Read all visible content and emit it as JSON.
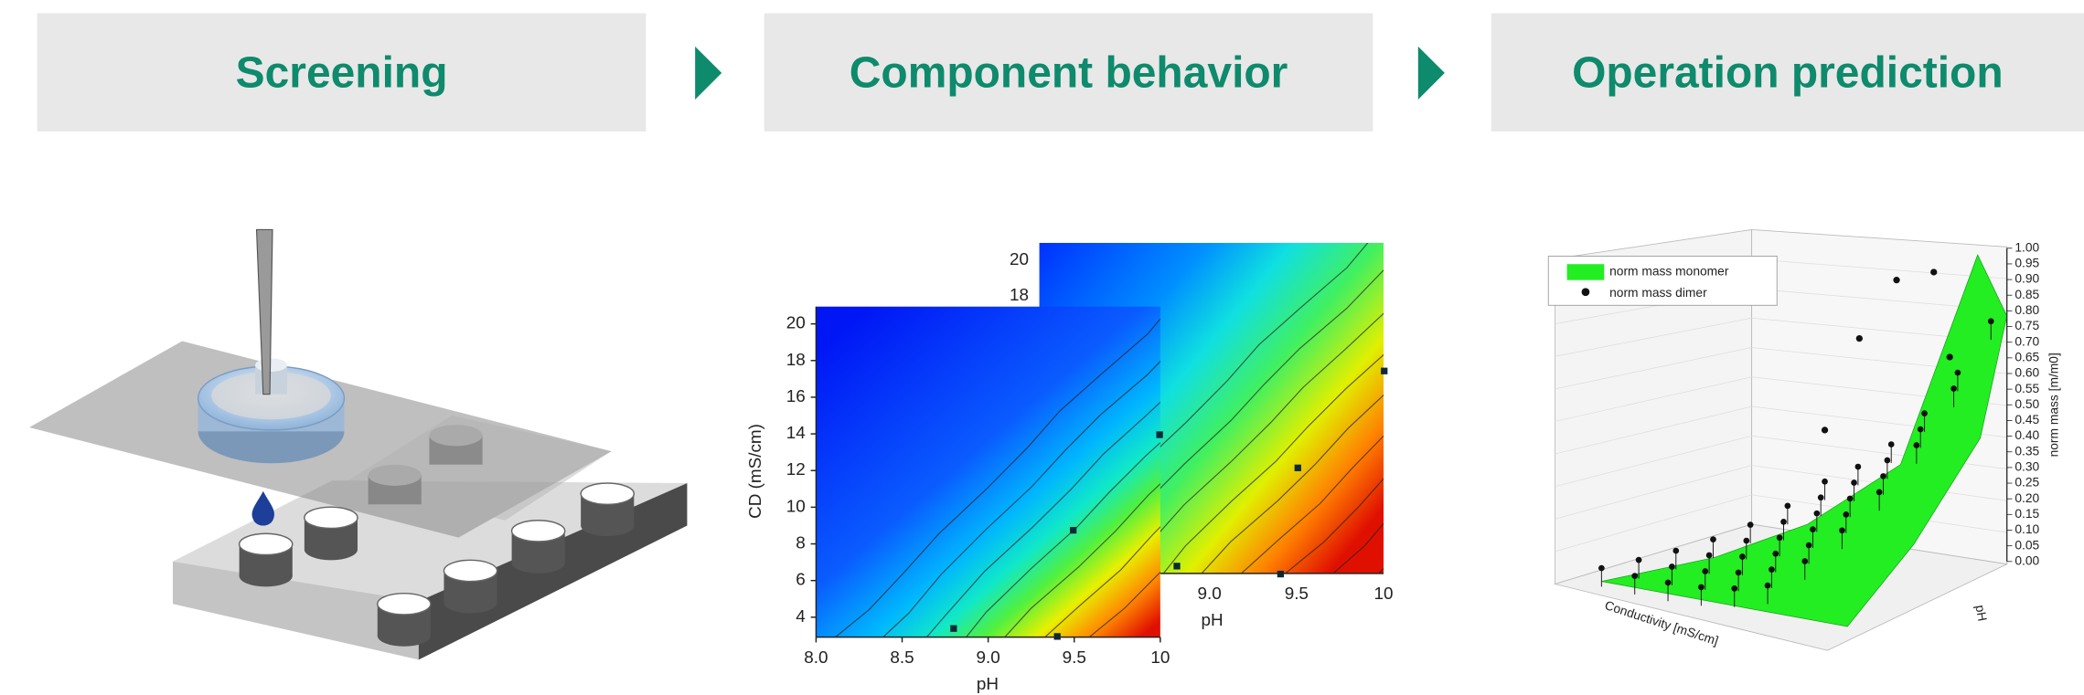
{
  "steps": [
    {
      "title": "Screening"
    },
    {
      "title": "Component behavior"
    },
    {
      "title": "Operation prediction"
    }
  ],
  "contour_front": {
    "y_label": "CD (mS/cm)",
    "x_label": "pH",
    "yticks": [
      "4",
      "6",
      "8",
      "10",
      "12",
      "14",
      "16",
      "18",
      "20"
    ],
    "xticks": [
      "8.0",
      "8.5",
      "9.0",
      "9.5",
      "10"
    ]
  },
  "contour_back": {
    "x_label": "pH",
    "yticks": [
      "18",
      "20"
    ],
    "xticks": [
      "9.0",
      "9.5",
      "10"
    ]
  },
  "surface_plot": {
    "legend": [
      "norm mass monomer",
      "norm mass dimer"
    ],
    "z_label": "norm mass [m/m0]",
    "zticks": [
      "0.00",
      "0.05",
      "0.10",
      "0.15",
      "0.20",
      "0.25",
      "0.30",
      "0.35",
      "0.40",
      "0.45",
      "0.50",
      "0.55",
      "0.60",
      "0.65",
      "0.70",
      "0.75",
      "0.80",
      "0.85",
      "0.90",
      "0.95",
      "1.00"
    ],
    "x_label": "Conductivity [mS/cm]",
    "y_label": "pH"
  }
}
